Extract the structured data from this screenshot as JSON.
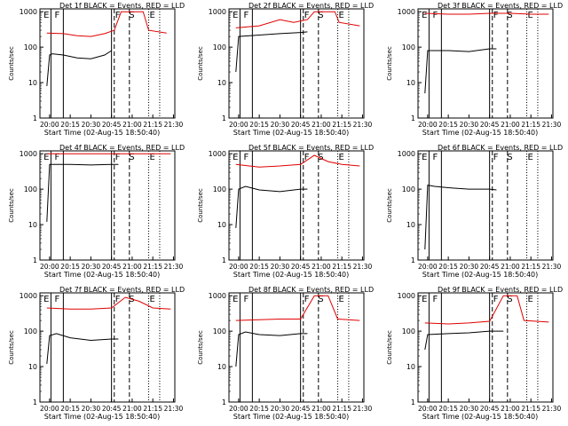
{
  "window_size_note": "",
  "common": {
    "ylabel": "Counts/sec",
    "xlabel_prefix": "Start Time (02-Aug-15 18:50:40)",
    "x_tick_labels": [
      "20:00",
      "20:15",
      "20:30",
      "20:45",
      "21:00",
      "21:15",
      "21:30"
    ],
    "y_tick_labels": [
      "1",
      "10",
      "100",
      "1000"
    ],
    "colors": {
      "events": "#000000",
      "lld": "#e00000",
      "axes": "#000000"
    }
  },
  "chart_data": [
    {
      "type": "line",
      "title": "Det 1f BLACK = Events, RED = LLD",
      "xlabel": "Start Time (02-Aug-15 18:50:40)",
      "ylabel": "Counts/sec",
      "x_ticks": [
        "20:00",
        "20:15",
        "20:30",
        "20:45",
        "21:00",
        "21:15",
        "21:30"
      ],
      "y_log": true,
      "ylim": [
        1,
        1000
      ],
      "region_labels": [
        "E",
        "F",
        "F",
        "S",
        "E"
      ],
      "series": [
        {
          "color": "#000000",
          "values": [
            {
              "t": "19:58",
              "y": 8
            },
            {
              "t": "20:00",
              "y": 60
            },
            {
              "t": "20:02",
              "y": 65
            },
            {
              "t": "20:10",
              "y": 60
            },
            {
              "t": "20:20",
              "y": 50
            },
            {
              "t": "20:30",
              "y": 47
            },
            {
              "t": "20:40",
              "y": 60
            },
            {
              "t": "20:45",
              "y": 80
            }
          ]
        },
        {
          "color": "#e00000",
          "values": [
            {
              "t": "19:58",
              "y": 250
            },
            {
              "t": "20:10",
              "y": 240
            },
            {
              "t": "20:20",
              "y": 210
            },
            {
              "t": "20:30",
              "y": 200
            },
            {
              "t": "20:40",
              "y": 240
            },
            {
              "t": "20:47",
              "y": 300
            },
            {
              "t": "20:52",
              "y": 1000
            },
            {
              "t": "21:08",
              "y": 1000
            },
            {
              "t": "21:12",
              "y": 300
            },
            {
              "t": "21:25",
              "y": 250
            }
          ]
        }
      ]
    },
    {
      "type": "line",
      "title": "Det 2f BLACK = Events, RED = LLD",
      "xlabel": "Start Time (02-Aug-15 18:50:40)",
      "ylabel": "Counts/sec",
      "x_ticks": [
        "20:00",
        "20:15",
        "20:30",
        "20:45",
        "21:00",
        "21:15",
        "21:30"
      ],
      "y_log": true,
      "ylim": [
        1,
        1000
      ],
      "region_labels": [
        "E",
        "F",
        "F",
        "S",
        "E"
      ],
      "series": [
        {
          "color": "#000000",
          "values": [
            {
              "t": "19:58",
              "y": 20
            },
            {
              "t": "20:00",
              "y": 200
            },
            {
              "t": "20:15",
              "y": 220
            },
            {
              "t": "20:30",
              "y": 240
            },
            {
              "t": "20:45",
              "y": 260
            },
            {
              "t": "20:50",
              "y": 270
            }
          ]
        },
        {
          "color": "#e00000",
          "values": [
            {
              "t": "19:58",
              "y": 350
            },
            {
              "t": "20:15",
              "y": 400
            },
            {
              "t": "20:30",
              "y": 600
            },
            {
              "t": "20:40",
              "y": 500
            },
            {
              "t": "20:50",
              "y": 600
            },
            {
              "t": "20:55",
              "y": 1000
            },
            {
              "t": "21:10",
              "y": 1000
            },
            {
              "t": "21:13",
              "y": 500
            },
            {
              "t": "21:28",
              "y": 400
            }
          ]
        }
      ]
    },
    {
      "type": "line",
      "title": "Det 3f BLACK = Events, RED = LLD",
      "xlabel": "Start Time (02-Aug-15 18:50:40)",
      "ylabel": "Counts/sec",
      "x_ticks": [
        "20:00",
        "20:15",
        "20:30",
        "20:45",
        "21:00",
        "21:15",
        "21:30"
      ],
      "y_log": true,
      "ylim": [
        1,
        1000
      ],
      "region_labels": [
        "E",
        "F",
        "F",
        "S",
        "E"
      ],
      "series": [
        {
          "color": "#000000",
          "values": [
            {
              "t": "19:58",
              "y": 5
            },
            {
              "t": "20:00",
              "y": 80
            },
            {
              "t": "20:15",
              "y": 80
            },
            {
              "t": "20:30",
              "y": 75
            },
            {
              "t": "20:45",
              "y": 90
            },
            {
              "t": "20:50",
              "y": 90
            }
          ]
        },
        {
          "color": "#e00000",
          "values": [
            {
              "t": "19:58",
              "y": 900
            },
            {
              "t": "20:15",
              "y": 850
            },
            {
              "t": "20:30",
              "y": 850
            },
            {
              "t": "20:45",
              "y": 900
            },
            {
              "t": "21:00",
              "y": 900
            },
            {
              "t": "21:15",
              "y": 850
            },
            {
              "t": "21:28",
              "y": 850
            }
          ]
        }
      ]
    },
    {
      "type": "line",
      "title": "Det 4f BLACK = Events, RED = LLD",
      "xlabel": "Start Time (02-Aug-15 18:50:40)",
      "ylabel": "Counts/sec",
      "x_ticks": [
        "20:00",
        "20:15",
        "20:30",
        "20:45",
        "21:00",
        "21:15",
        "21:30"
      ],
      "y_log": true,
      "ylim": [
        1,
        1000
      ],
      "region_labels": [
        "E",
        "F",
        "F",
        "S",
        "E"
      ],
      "series": [
        {
          "color": "#000000",
          "values": [
            {
              "t": "19:58",
              "y": 12
            },
            {
              "t": "20:00",
              "y": 500
            },
            {
              "t": "20:15",
              "y": 500
            },
            {
              "t": "20:30",
              "y": 480
            },
            {
              "t": "20:45",
              "y": 500
            },
            {
              "t": "20:50",
              "y": 500
            }
          ]
        },
        {
          "color": "#e00000",
          "values": [
            {
              "t": "19:58",
              "y": 1000
            },
            {
              "t": "20:10",
              "y": 1000
            },
            {
              "t": "20:20",
              "y": 1000
            },
            {
              "t": "20:40",
              "y": 1000
            },
            {
              "t": "20:52",
              "y": 1000
            },
            {
              "t": "21:08",
              "y": 1000
            },
            {
              "t": "21:12",
              "y": 1000
            },
            {
              "t": "21:28",
              "y": 1000
            }
          ]
        }
      ]
    },
    {
      "type": "line",
      "title": "Det 5f BLACK = Events, RED = LLD",
      "xlabel": "Start Time (02-Aug-15 18:50:40)",
      "ylabel": "Counts/sec",
      "x_ticks": [
        "20:00",
        "20:15",
        "20:30",
        "20:45",
        "21:00",
        "21:15",
        "21:30"
      ],
      "y_log": true,
      "ylim": [
        1,
        1000
      ],
      "region_labels": [
        "E",
        "F",
        "F",
        "S",
        "E"
      ],
      "series": [
        {
          "color": "#000000",
          "values": [
            {
              "t": "19:58",
              "y": 8
            },
            {
              "t": "20:00",
              "y": 100
            },
            {
              "t": "20:05",
              "y": 120
            },
            {
              "t": "20:15",
              "y": 95
            },
            {
              "t": "20:30",
              "y": 85
            },
            {
              "t": "20:45",
              "y": 100
            },
            {
              "t": "20:50",
              "y": 100
            }
          ]
        },
        {
          "color": "#e00000",
          "values": [
            {
              "t": "19:58",
              "y": 500
            },
            {
              "t": "20:15",
              "y": 420
            },
            {
              "t": "20:30",
              "y": 450
            },
            {
              "t": "20:45",
              "y": 500
            },
            {
              "t": "20:55",
              "y": 900
            },
            {
              "t": "21:05",
              "y": 600
            },
            {
              "t": "21:15",
              "y": 500
            },
            {
              "t": "21:28",
              "y": 450
            }
          ]
        }
      ]
    },
    {
      "type": "line",
      "title": "Det 6f BLACK = Events, RED = LLD",
      "xlabel": "Start Time (02-Aug-15 18:50:40)",
      "ylabel": "Counts/sec",
      "x_ticks": [
        "20:00",
        "20:15",
        "20:30",
        "20:45",
        "21:00",
        "21:15",
        "21:30"
      ],
      "y_log": true,
      "ylim": [
        1,
        1000
      ],
      "region_labels": [
        "E",
        "F",
        "F",
        "S",
        "E"
      ],
      "series": [
        {
          "color": "#000000",
          "values": [
            {
              "t": "19:58",
              "y": 2
            },
            {
              "t": "20:00",
              "y": 130
            },
            {
              "t": "20:05",
              "y": 120
            },
            {
              "t": "20:15",
              "y": 110
            },
            {
              "t": "20:30",
              "y": 100
            },
            {
              "t": "20:45",
              "y": 100
            },
            {
              "t": "20:50",
              "y": 95
            }
          ]
        }
      ]
    },
    {
      "type": "line",
      "title": "Det 7f BLACK = Events, RED = LLD",
      "xlabel": "Start Time (02-Aug-15 18:50:40)",
      "ylabel": "Counts/sec",
      "x_ticks": [
        "20:00",
        "20:15",
        "20:30",
        "20:45",
        "21:00",
        "21:15",
        "21:30"
      ],
      "y_log": true,
      "ylim": [
        1,
        1000
      ],
      "region_labels": [
        "E",
        "F",
        "F",
        "S",
        "E"
      ],
      "series": [
        {
          "color": "#000000",
          "values": [
            {
              "t": "19:58",
              "y": 12
            },
            {
              "t": "20:00",
              "y": 75
            },
            {
              "t": "20:05",
              "y": 85
            },
            {
              "t": "20:15",
              "y": 65
            },
            {
              "t": "20:30",
              "y": 55
            },
            {
              "t": "20:45",
              "y": 60
            },
            {
              "t": "20:50",
              "y": 60
            }
          ]
        },
        {
          "color": "#e00000",
          "values": [
            {
              "t": "19:58",
              "y": 450
            },
            {
              "t": "20:15",
              "y": 420
            },
            {
              "t": "20:30",
              "y": 420
            },
            {
              "t": "20:45",
              "y": 450
            },
            {
              "t": "20:55",
              "y": 900
            },
            {
              "t": "21:05",
              "y": 700
            },
            {
              "t": "21:15",
              "y": 450
            },
            {
              "t": "21:28",
              "y": 420
            }
          ]
        }
      ]
    },
    {
      "type": "line",
      "title": "Det 8f BLACK = Events, RED = LLD",
      "xlabel": "Start Time (02-Aug-15 18:50:40)",
      "ylabel": "Counts/sec",
      "x_ticks": [
        "20:00",
        "20:15",
        "20:30",
        "20:45",
        "21:00",
        "21:15",
        "21:30"
      ],
      "y_log": true,
      "ylim": [
        1,
        1000
      ],
      "region_labels": [
        "E",
        "F",
        "F",
        "S",
        "E"
      ],
      "series": [
        {
          "color": "#000000",
          "values": [
            {
              "t": "19:58",
              "y": 10
            },
            {
              "t": "20:00",
              "y": 80
            },
            {
              "t": "20:05",
              "y": 95
            },
            {
              "t": "20:15",
              "y": 80
            },
            {
              "t": "20:30",
              "y": 75
            },
            {
              "t": "20:45",
              "y": 85
            },
            {
              "t": "20:50",
              "y": 85
            }
          ]
        },
        {
          "color": "#e00000",
          "values": [
            {
              "t": "19:58",
              "y": 200
            },
            {
              "t": "20:15",
              "y": 210
            },
            {
              "t": "20:30",
              "y": 220
            },
            {
              "t": "20:45",
              "y": 220
            },
            {
              "t": "20:55",
              "y": 1000
            },
            {
              "t": "21:05",
              "y": 1000
            },
            {
              "t": "21:12",
              "y": 220
            },
            {
              "t": "21:28",
              "y": 200
            }
          ]
        }
      ]
    },
    {
      "type": "line",
      "title": "Det 9f BLACK = Events, RED = LLD",
      "xlabel": "Start Time (02-Aug-15 18:50:40)",
      "ylabel": "Counts/sec",
      "x_ticks": [
        "20:00",
        "20:15",
        "20:30",
        "20:45",
        "21:00",
        "21:15",
        "21:30"
      ],
      "y_log": true,
      "ylim": [
        1,
        1000
      ],
      "region_labels": [
        "E",
        "F",
        "F",
        "S",
        "E"
      ],
      "series": [
        {
          "color": "#000000",
          "values": [
            {
              "t": "19:58",
              "y": 30
            },
            {
              "t": "20:00",
              "y": 80
            },
            {
              "t": "20:15",
              "y": 85
            },
            {
              "t": "20:30",
              "y": 90
            },
            {
              "t": "20:45",
              "y": 100
            },
            {
              "t": "20:55",
              "y": 100
            }
          ]
        },
        {
          "color": "#e00000",
          "values": [
            {
              "t": "19:58",
              "y": 170
            },
            {
              "t": "20:15",
              "y": 160
            },
            {
              "t": "20:30",
              "y": 170
            },
            {
              "t": "20:45",
              "y": 190
            },
            {
              "t": "20:55",
              "y": 1000
            },
            {
              "t": "21:05",
              "y": 1000
            },
            {
              "t": "21:10",
              "y": 200
            },
            {
              "t": "21:28",
              "y": 180
            }
          ]
        }
      ]
    }
  ]
}
